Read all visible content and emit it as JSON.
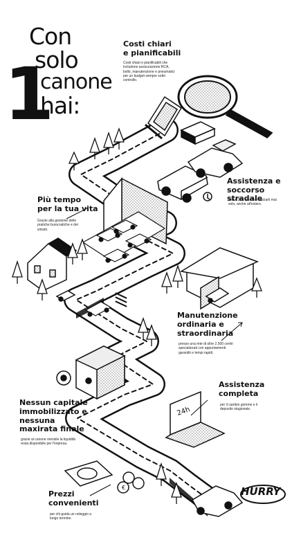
{
  "hero": {
    "number": "1",
    "line1": "Con",
    "line2": "solo",
    "line3": "canone",
    "line4": "hai:"
  },
  "sections": [
    {
      "title_l1": "Costi chiari",
      "title_l2": "e pianificabili",
      "title_l3": "",
      "body": "Costi chiari e pianificabili che includono assicurazione RCA, bollo, manutenzione e pneumatici per un budget sempre sotto controllo."
    },
    {
      "title_l1": "Assistenza e",
      "title_l2": "soccorso stradale",
      "title_l3": "",
      "body": "Attivo 24h, per non lasciarti mai solo, anche all'estero."
    },
    {
      "title_l1": "Più tempo",
      "title_l2": "per la tua vita",
      "title_l3": "",
      "body": "Grazie alla gestione delle pratiche burocratiche e dei sinistri."
    },
    {
      "title_l1": "Manutenzione",
      "title_l2": "ordinaria e",
      "title_l3": "straordinaria",
      "body": "presso una rete di oltre 2.500 centri specializzati con appuntamenti garantiti e tempi rapidi."
    },
    {
      "title_l1": "Assistenza",
      "title_l2": "completa",
      "title_l3": "",
      "body": "per il cambio gomme e il deposito stagionale."
    },
    {
      "title_l1": "Nessun capitale",
      "title_l2": "immobilizzato e",
      "title_l3": "nessuna maxirata finale",
      "body": "grazie al canone mensile la liquidità resta disponibile per l'impresa."
    },
    {
      "title_l1": "Prezzi",
      "title_l2": "convenienti",
      "title_l3": "",
      "body": "per chi guida un noleggio a lungo termine."
    }
  ],
  "monitor_text": "24h",
  "brand": "HURRY"
}
